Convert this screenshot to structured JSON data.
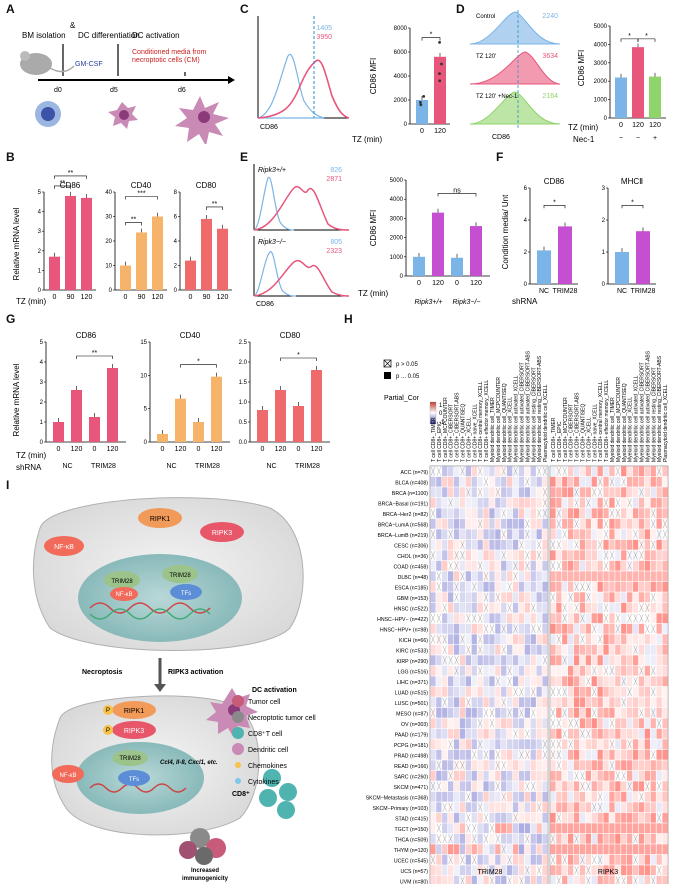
{
  "panels": {
    "A": "A",
    "B": "B",
    "C": "C",
    "D": "D",
    "E": "E",
    "F": "F",
    "G": "G",
    "H": "H",
    "I": "I"
  },
  "panelA": {
    "step1": "BM isolation",
    "amp": "&",
    "step2": "DC differentiation",
    "step3": "DC activation",
    "gmcsf": "GM-CSF",
    "cm": "Conditioned media from necroptotic cells (CM)",
    "d0": "d0",
    "d5": "d5",
    "d6": "d6"
  },
  "panelB": {
    "ylabel": "Relative mRNA level",
    "xtitle": "TZ (min)",
    "charts": [
      {
        "title": "CD86",
        "categories": [
          "0",
          "90",
          "120"
        ],
        "values": [
          1.7,
          4.8,
          4.7
        ],
        "yticks": [
          "0",
          "1",
          "2",
          "3",
          "4",
          "5"
        ],
        "ymax": 5,
        "sig": [
          "**",
          "**"
        ],
        "color": "#e8567c"
      },
      {
        "title": "CD40",
        "categories": [
          "0",
          "90",
          "120"
        ],
        "values": [
          10,
          23.5,
          30
        ],
        "yticks": [
          "0",
          "10",
          "20",
          "30",
          "40"
        ],
        "ymax": 40,
        "sig": [
          "**",
          "***"
        ],
        "color": "#f6b36a"
      },
      {
        "title": "CD80",
        "categories": [
          "0",
          "90",
          "120"
        ],
        "values": [
          2.4,
          5.8,
          5.0
        ],
        "yticks": [
          "0",
          "2",
          "4",
          "6",
          "8"
        ],
        "ymax": 8,
        "sig": [
          "**"
        ],
        "color": "#ef6a6a"
      }
    ]
  },
  "panelC": {
    "hist_mfi_a": "1405",
    "hist_mfi_b": "3950",
    "xlabel": "CD86",
    "ylabel": "CD86 MFI",
    "xtitle": "TZ (min)",
    "categories": [
      "0",
      "120"
    ],
    "values": [
      2000,
      5600
    ],
    "yticks": [
      "0",
      "2000",
      "4000",
      "6000",
      "8000"
    ],
    "ymax": 8000,
    "sig": "*"
  },
  "panelD": {
    "rows": [
      {
        "label": "Control",
        "mfi": "2240",
        "color": "#7bb4e6"
      },
      {
        "label": "TZ 120'",
        "mfi": "3634",
        "color": "#e8567c"
      },
      {
        "label": "TZ 120' +Nec-1",
        "mfi": "2164",
        "color": "#8fd46a"
      }
    ],
    "xlabel": "CD86",
    "ylabel": "CD86 MFI",
    "xtitle1": "TZ (min)",
    "xtitle2": "Nec-1",
    "categories": [
      "0",
      "120",
      "120"
    ],
    "nec": [
      "−",
      "−",
      "+"
    ],
    "values": [
      2200,
      3850,
      2250
    ],
    "yticks": [
      "0",
      "1000",
      "2000",
      "3000",
      "4000",
      "5000"
    ],
    "ymax": 5000,
    "sig": [
      "*",
      "*"
    ]
  },
  "panelE": {
    "hist1_label": "Ripk3+/+",
    "hist1_mfi_a": "826",
    "hist1_mfi_b": "2871",
    "hist2_label": "Ripk3−/−",
    "hist2_mfi_a": "805",
    "hist2_mfi_b": "2323",
    "xlabel": "CD86",
    "ylabel": "CD86 MFI",
    "xtitle": "TZ (min)",
    "categories": [
      "0",
      "120",
      "0",
      "120"
    ],
    "groups": [
      "Ripk3+/+",
      "Ripk3−/−"
    ],
    "values": [
      1000,
      3300,
      950,
      2600
    ],
    "yticks": [
      "0",
      "1000",
      "2000",
      "3000",
      "4000",
      "5000"
    ],
    "ymax": 5000,
    "sig": "ns"
  },
  "panelF": {
    "ylabel": "Condition media/ Unt",
    "xtitle": "shRNA",
    "charts": [
      {
        "title": "CD86",
        "categories": [
          "NC",
          "TRIM28"
        ],
        "values": [
          2.1,
          3.6
        ],
        "yticks": [
          "0",
          "2",
          "4",
          "6"
        ],
        "ymax": 6,
        "sig": "*"
      },
      {
        "title": "MHCⅡ",
        "categories": [
          "NC",
          "TRIM28"
        ],
        "values": [
          1.0,
          1.65
        ],
        "yticks": [
          "0",
          "1",
          "2",
          "3"
        ],
        "ymax": 3,
        "sig": "*"
      }
    ]
  },
  "panelG": {
    "ylabel": "Relative mRNA level",
    "xtitle1": "TZ (min)",
    "xtitle2": "shRNA",
    "tz": [
      "0",
      "120",
      "0",
      "120"
    ],
    "groups": [
      "NC",
      "TRIM28"
    ],
    "charts": [
      {
        "title": "CD86",
        "values": [
          1.0,
          2.6,
          1.25,
          3.7
        ],
        "yticks": [
          "0",
          "1",
          "2",
          "3",
          "4",
          "5"
        ],
        "ymax": 5,
        "sig": "**",
        "color": "#e8567c"
      },
      {
        "title": "CD40",
        "values": [
          1.2,
          6.5,
          3.0,
          9.8
        ],
        "yticks": [
          "0",
          "5",
          "10",
          "15"
        ],
        "ymax": 15,
        "sig": "*",
        "color": "#f6b36a"
      },
      {
        "title": "CD80",
        "values": [
          0.8,
          1.3,
          0.9,
          1.8
        ],
        "yticks": [
          "0.0",
          "0.5",
          "1.0",
          "1.5",
          "2.0",
          "2.5"
        ],
        "ymax": 2.5,
        "sig": "*",
        "color": "#ef6a6a"
      }
    ]
  },
  "panelH": {
    "legend_p1": "p > 0.05",
    "legend_p2": "p ... 0.05",
    "legend_title": "Partial_Cor",
    "legend_hi": "1",
    "legend_mid": "0",
    "legend_lo": "-1",
    "columns": [
      "T cell CD8+_TIMER",
      "T cell CD8+_EPIC",
      "T cell CD8+_MCPCOUNTER",
      "T cell CD8+_CIBERSORT",
      "T cell CD8+_CIBERSORT-ABS",
      "T cell CD8+_QUANTISEQ",
      "T cell CD8+_XCELL",
      "T cell CD8+ naive_XCELL",
      "T cell CD8+ central memory_XCELL",
      "T cell CD8+ effector memory_XCELL",
      "Myeloid dendritic cell_TIMER",
      "Myeloid dendritic cell_MCPCOUNTER",
      "Myeloid dendritic cell_QUANTISEQ",
      "Myeloid dendritic cell_XCELL",
      "Myeloid dendritic cell activated_XCELL",
      "Myeloid dendritic cell activated_CIBERSORT",
      "Myeloid dendritic cell activated_CIBERSORT-ABS",
      "Myeloid dendritic cell resting_CIBERSORT",
      "Myeloid dendritic cell resting_CIBERSORT-ABS",
      "Plasmacytoid dendritic cell_XCELL"
    ],
    "rows": [
      "ACC (n=79)",
      "BLCA (n=408)",
      "BRCA (n=1100)",
      "BRCA−Basal (n=191)",
      "BRCA−Her2 (n=82)",
      "BRCA−LumA (n=568)",
      "BRCA−LumB (n=219)",
      "CESC (n=306)",
      "CHOL (n=36)",
      "COAD (n=458)",
      "DLBC (n=48)",
      "ESCA (n=185)",
      "GBM (n=153)",
      "HNSC (n=522)",
      "HNSC−HPV− (n=422)",
      "HNSC−HPV+ (n=98)",
      "KICH (n=66)",
      "KIRC (n=533)",
      "KIRP (n=290)",
      "LGG (n=516)",
      "LIHC (n=371)",
      "LUAD (n=515)",
      "LUSC (n=501)",
      "MESO (n=87)",
      "OV (n=303)",
      "PAAD (n=179)",
      "PCPG (n=181)",
      "PRAD (n=498)",
      "READ (n=166)",
      "SARC (n=260)",
      "SKCM (n=471)",
      "SKCM−Metastasis (n=368)",
      "SKCM−Primary (n=103)",
      "STAD (n=415)",
      "TGCT (n=150)",
      "THCA (n=509)",
      "THYM (n=120)",
      "UCEC (n=545)",
      "UCS (n=57)",
      "UVM (n=80)"
    ],
    "gene1": "TRIM28",
    "gene2": "RIPK3"
  },
  "panelI": {
    "nfkb": "NF-κB",
    "ripk1": "RIPK1",
    "ripk3": "RIPK3",
    "trim28": "TRIM28",
    "tfs": "TFs",
    "p": "P",
    "necroptosis": "Necroptosis",
    "ripk3act": "RIPK3 activation",
    "dcact": "DC activation",
    "genes": "Ccl4, Il-8, Cxcl1, etc.",
    "cd8": "CD8⁺",
    "increased": "Increased immunogenicity",
    "legend": [
      "Tumor cell",
      "Necroptotic tumor cell",
      "CD8⁺T cell",
      "Dendritic cell",
      "Chemokines",
      "Cytokines"
    ]
  }
}
